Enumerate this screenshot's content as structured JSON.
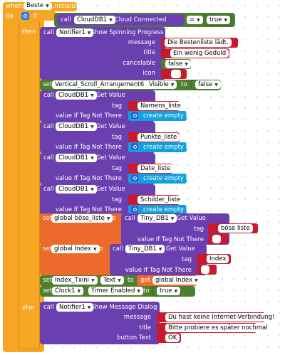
{
  "when": {
    "label": "when",
    "component": "Beste",
    "event": ".Initialize",
    "do": "do"
  },
  "ifblock": {
    "label": "if",
    "then": "then",
    "else": "else"
  },
  "cond": {
    "call": "call",
    "component": "CloudDB1",
    "method": ".Cloud Connected",
    "op": "=",
    "value": "true"
  },
  "spin": {
    "call": "call",
    "component": "Notifier1",
    "method": ".Show Spinning Progress",
    "params": [
      "message",
      "title",
      "cancelable",
      "icon"
    ],
    "message": "Die Bestenliste lädt.",
    "title": "Ein wenig Geduld",
    "cancelable": "false"
  },
  "setvis": {
    "set": "set",
    "component": "Vertical_Scroll_Arrangement6",
    "prop": "Visible",
    "to": "to",
    "value": "false"
  },
  "getvals": [
    {
      "call": "call",
      "component": "CloudDB1",
      "method": ".Get Value",
      "tag_label": "tag",
      "tag": "Namens_liste",
      "vt": "value If Tag Not There",
      "cel": "create empty list"
    },
    {
      "call": "call",
      "component": "CloudDB1",
      "method": ".Get Value",
      "tag_label": "tag",
      "tag": "Punkte_liste",
      "vt": "value If Tag Not There",
      "cel": "create empty list"
    },
    {
      "call": "call",
      "component": "CloudDB1",
      "method": ".Get Value",
      "tag_label": "tag",
      "tag": "Date_liste",
      "vt": "value If Tag Not There",
      "cel": "create empty list"
    },
    {
      "call": "call",
      "component": "CloudDB1",
      "method": ".Get Value",
      "tag_label": "tag",
      "tag": "Schilder_liste",
      "vt": "value If Tag Not There",
      "cel": "create empty list"
    }
  ],
  "setglobal": [
    {
      "set": "set",
      "var": "global böse_liste",
      "to": "to",
      "call": "call",
      "component": "Tiny_DB1",
      "method": ".Get Value",
      "tag_label": "tag",
      "tag": "böse liste",
      "vt": "value If Tag Not There"
    },
    {
      "set": "set",
      "var": "global Index",
      "to": "to",
      "call": "call",
      "component": "Tiny_DB1",
      "method": ".Get Value",
      "tag_label": "tag",
      "tag": "Index",
      "vt": "value If Tag Not There"
    }
  ],
  "settxt": {
    "set": "set",
    "component": "Index_Txini",
    "prop": "Text",
    "to": "to",
    "get": "get",
    "var": "global Index"
  },
  "settimer": {
    "set": "set",
    "component": "Clock1",
    "prop": "Timer Enabled",
    "to": "to",
    "value": "true"
  },
  "msg": {
    "call": "call",
    "component": "Notifier1",
    "method": ".Show Message Dialog",
    "params": [
      "message",
      "title",
      "button Text"
    ],
    "message": "Du hast keine Internet-Verbindung!",
    "title": "Bitte probiere es später nochmal",
    "button": "OK"
  },
  "colors": {
    "control": "#f6a623",
    "component": "#6a3fb0",
    "logic": "#4c7f2f",
    "text": "#c81a2b",
    "list": "#13a1de",
    "variable": "#ec6a2c",
    "background": "#ffffff"
  }
}
